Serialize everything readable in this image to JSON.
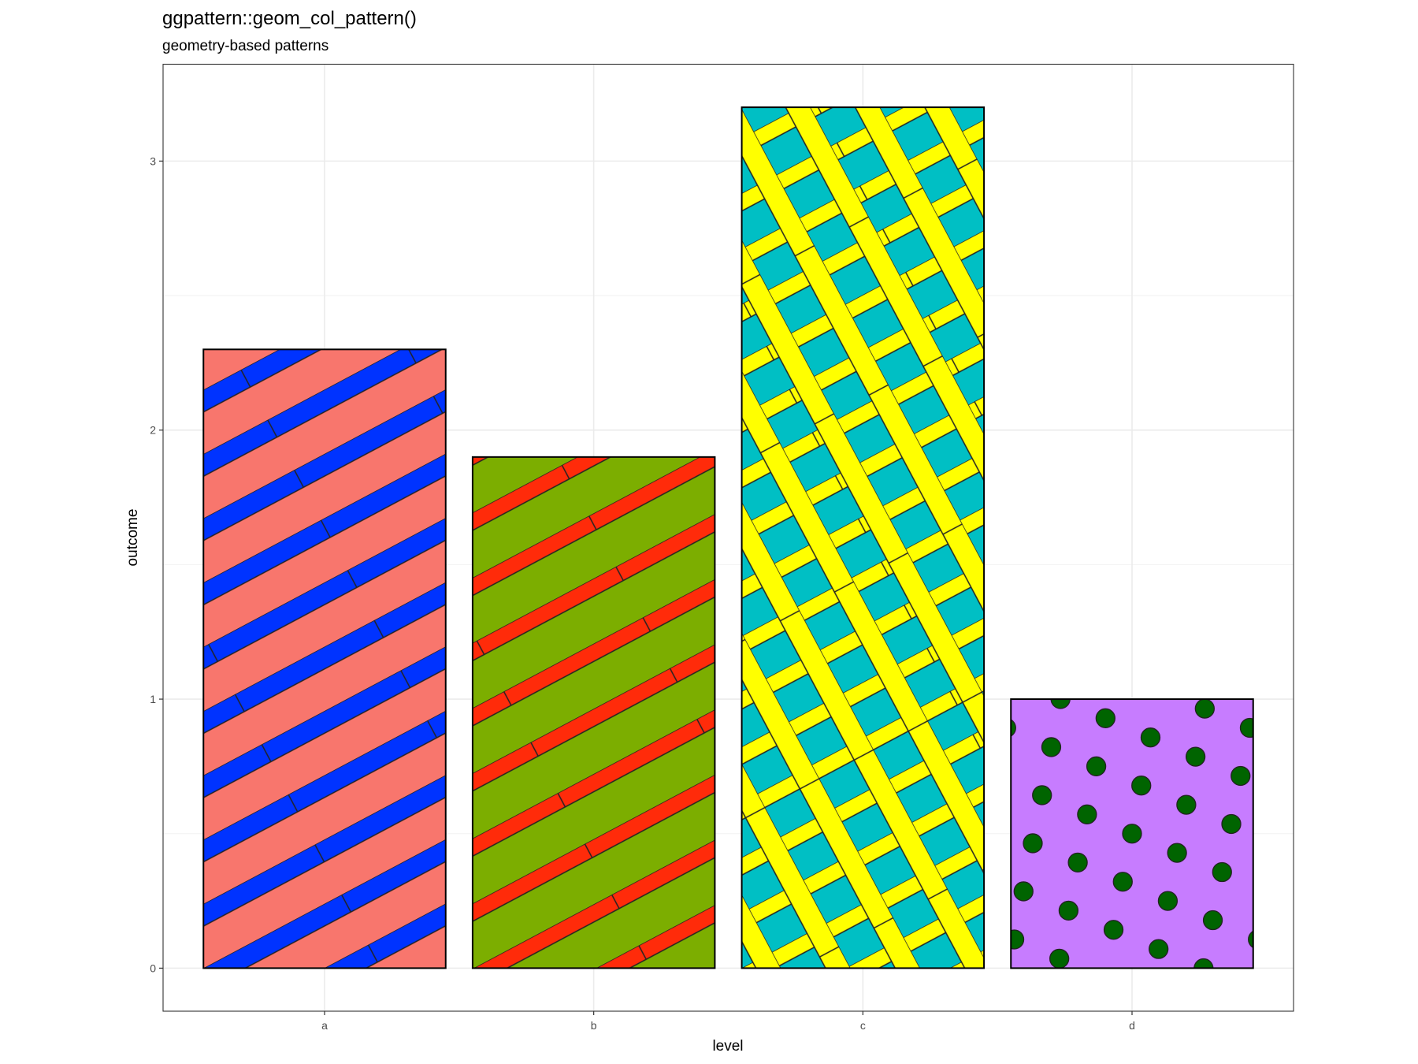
{
  "chart_data": {
    "type": "bar",
    "title": "ggpattern::geom_col_pattern()",
    "subtitle": "geometry-based patterns",
    "xlabel": "level",
    "ylabel": "outcome",
    "categories": [
      "a",
      "b",
      "c",
      "d"
    ],
    "values": [
      2.3,
      1.9,
      3.2,
      1.0
    ],
    "ylim": [
      -0.16,
      3.36
    ],
    "yticks": [
      0,
      1,
      2,
      3
    ],
    "grid": true,
    "patterns": [
      {
        "type": "stripe",
        "fill": "#F8766D",
        "pattern_fill": "#0033FF"
      },
      {
        "type": "stripe",
        "fill": "#7CAE00",
        "pattern_fill": "#FF2B0A"
      },
      {
        "type": "crosshatch",
        "fill": "#00BFC4",
        "pattern_fill": "#FFFF00"
      },
      {
        "type": "circle",
        "fill": "#C77CFF",
        "pattern_fill": "#006400"
      }
    ]
  }
}
